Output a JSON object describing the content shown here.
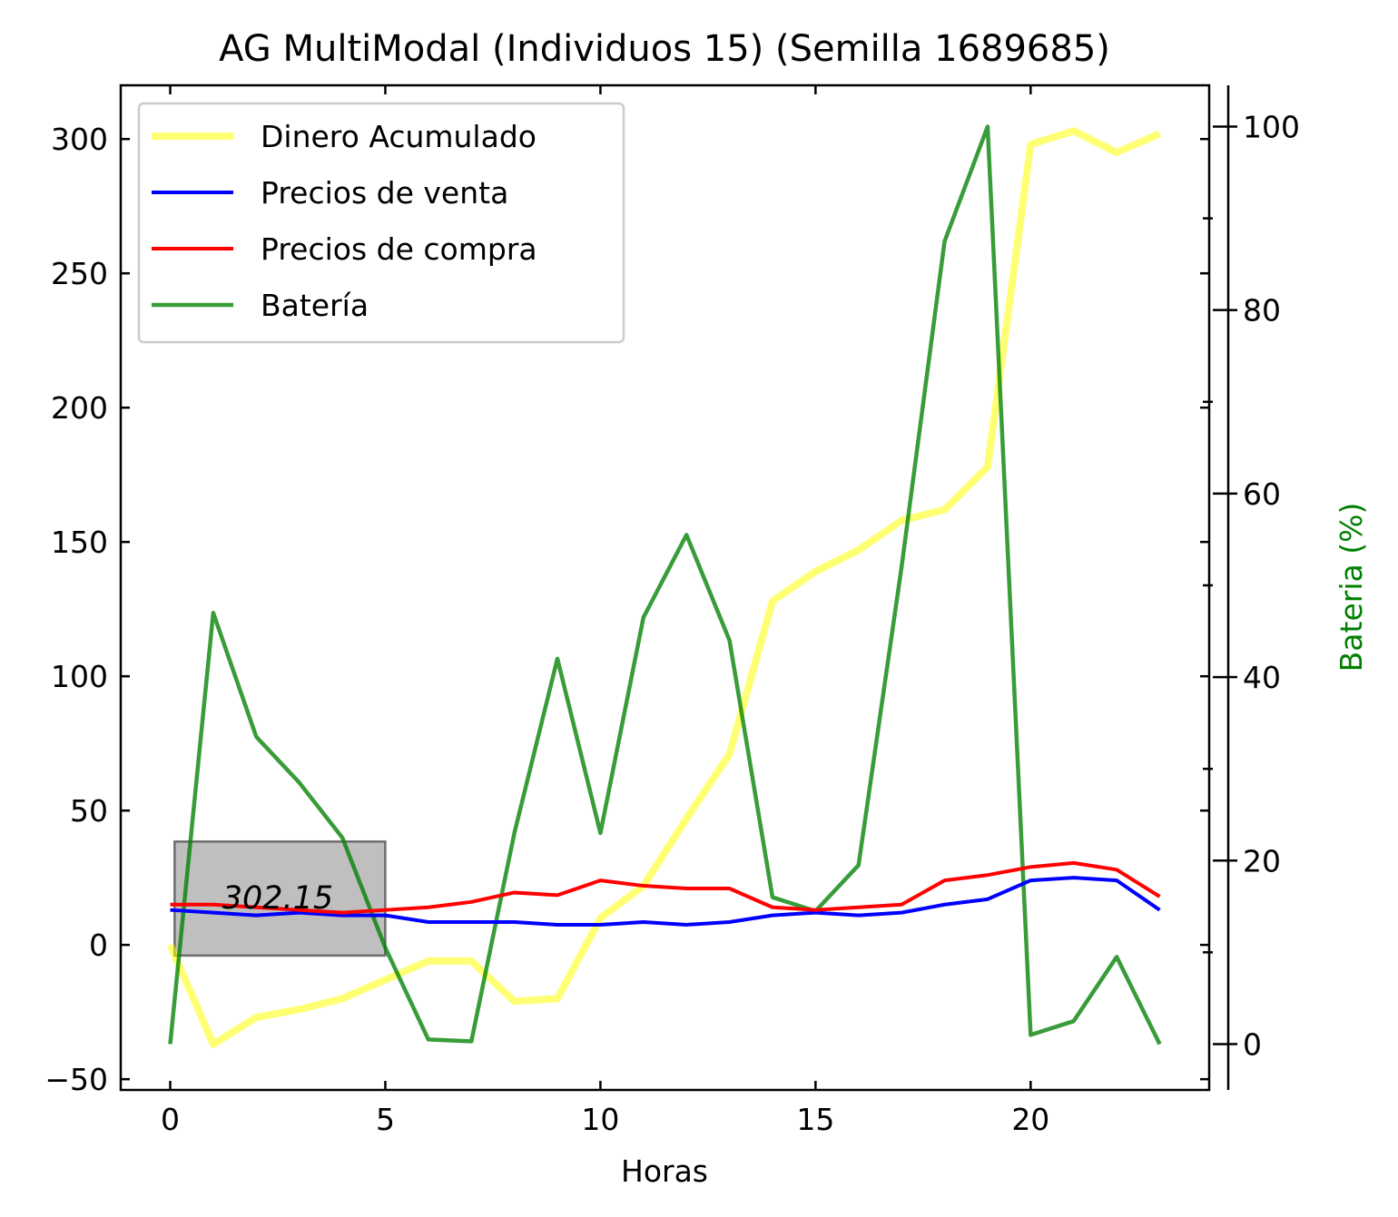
{
  "chart_data": {
    "type": "line",
    "title": "AG MultiModal (Individuos 15) (Semilla 1689685)",
    "xlabel": "Horas",
    "ylabel": "",
    "y2label": "Bateria (%)",
    "xlim": [
      -1.15,
      24.15
    ],
    "ylim": [
      -54,
      320
    ],
    "y2lim": [
      -5,
      104.5
    ],
    "xticks": [
      0,
      5,
      10,
      15,
      20
    ],
    "yticks": [
      -50,
      0,
      50,
      100,
      150,
      200,
      250,
      300
    ],
    "y2ticks": [
      0,
      20,
      40,
      60,
      80,
      100
    ],
    "grid": false,
    "legend_position": "top-left",
    "x": [
      0,
      1,
      2,
      3,
      4,
      5,
      6,
      7,
      8,
      9,
      10,
      11,
      12,
      13,
      14,
      15,
      16,
      17,
      18,
      19,
      20,
      21,
      22,
      23
    ],
    "series": [
      {
        "name": "Dinero Acumulado",
        "axis": "left",
        "color": "#ffff00",
        "opacity": 0.55,
        "width": 8,
        "values": [
          0,
          -37,
          -27,
          -24,
          -20,
          -13,
          -6,
          -6,
          -21,
          -20,
          10,
          22,
          47,
          71,
          128,
          139,
          147,
          158,
          162,
          178,
          298,
          303,
          295,
          302
        ]
      },
      {
        "name": "Precios de venta",
        "axis": "left",
        "color": "#0000ff",
        "opacity": 1,
        "width": 4,
        "values": [
          13,
          12,
          11,
          12,
          11,
          11,
          8.5,
          8.5,
          8.5,
          7.5,
          7.5,
          8.5,
          7.5,
          8.5,
          11,
          12,
          11,
          12,
          15,
          17,
          24,
          25,
          24,
          13
        ]
      },
      {
        "name": "Precios de compra",
        "axis": "left",
        "color": "#ff0000",
        "opacity": 1,
        "width": 4,
        "values": [
          15,
          15,
          14,
          13,
          12,
          13,
          14,
          16,
          19.5,
          18.5,
          24,
          22,
          21,
          21,
          14,
          13,
          14,
          15,
          24,
          26,
          29,
          30.5,
          28,
          18
        ]
      },
      {
        "name": "Batería",
        "axis": "right",
        "color": "#008000",
        "opacity": 0.78,
        "width": 4.5,
        "values": [
          0,
          47,
          33.5,
          28.5,
          22.5,
          10.5,
          0.5,
          0.3,
          23,
          42,
          23,
          46.5,
          55.5,
          44,
          16,
          14.5,
          19.5,
          52,
          87.5,
          100,
          1,
          2.5,
          9.5,
          0
        ]
      }
    ],
    "annotations": [
      {
        "text": "302.15",
        "x": 2.5,
        "y": 17
      }
    ],
    "annotation_box": {
      "x0": 0.1,
      "x1": 5,
      "y0": -4,
      "y1": 38.5
    }
  }
}
